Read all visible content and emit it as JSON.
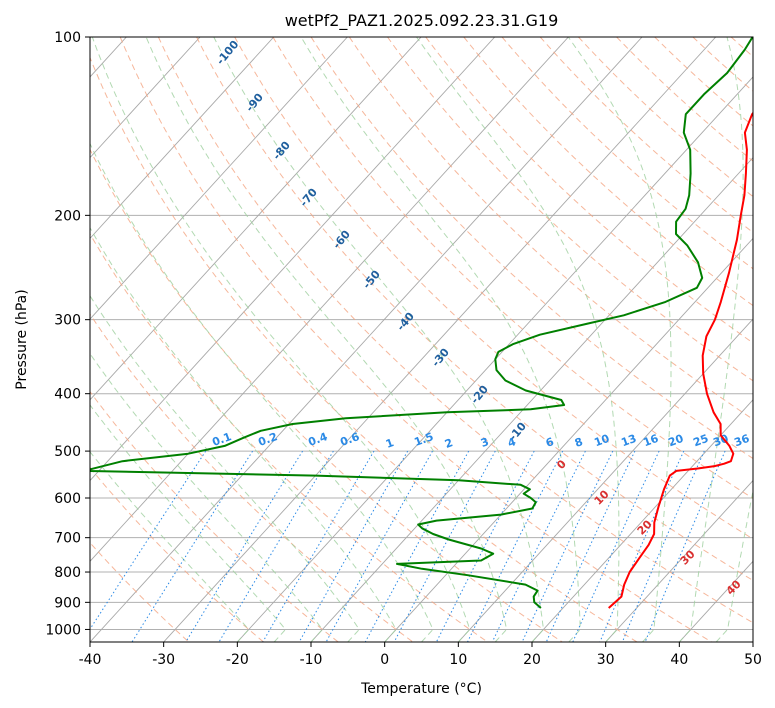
{
  "chart_data": {
    "type": "skew-t",
    "title": "wetPf2_PAZ1.2025.092.23.31.G19",
    "xlabel": "Temperature (°C)",
    "ylabel": "Pressure (hPa)",
    "xlim": [
      -40,
      50
    ],
    "ylim": [
      1050,
      100
    ],
    "y_scale": "log",
    "x_ticks": [
      -40,
      -30,
      -20,
      -10,
      0,
      10,
      20,
      30,
      40,
      50
    ],
    "y_ticks": [
      100,
      200,
      300,
      400,
      500,
      600,
      700,
      800,
      900,
      1000
    ],
    "grid": true,
    "colors": {
      "temperature": "#ff0000",
      "dewpoint": "#008000",
      "isotherm": "#888888",
      "dry_adiabat": "#f4a582",
      "moist_adiabat": "#9fd09f",
      "mixing_ratio": "#2b8ae6",
      "dry_adiabat_labels": "#1f5f9e",
      "moist_adiabat_labels": "#d93030"
    },
    "dry_adiabat_labels": [
      -100,
      -90,
      -80,
      -70,
      -60,
      -50,
      -40,
      -30,
      -20,
      -10
    ],
    "mixing_ratio_labels": [
      "0.1",
      "0.2",
      "0.4",
      "0.6",
      "1",
      "1.5",
      "2",
      "3",
      "4",
      "6",
      "8",
      "10",
      "13",
      "16",
      "20",
      "25",
      "30",
      "36"
    ],
    "moist_adiabat_labels": [
      0,
      10,
      20,
      30,
      40
    ],
    "series": [
      {
        "name": "temperature",
        "points": [
          [
            920,
            26.2
          ],
          [
            880,
            26.5
          ],
          [
            840,
            25.4
          ],
          [
            800,
            24.6
          ],
          [
            760,
            24.2
          ],
          [
            720,
            23.8
          ],
          [
            690,
            23.2
          ],
          [
            660,
            21.8
          ],
          [
            620,
            20.4
          ],
          [
            580,
            19.0
          ],
          [
            550,
            18.1
          ],
          [
            540,
            18.4
          ],
          [
            535,
            21.0
          ],
          [
            530,
            23.0
          ],
          [
            525,
            24.0
          ],
          [
            520,
            24.6
          ],
          [
            505,
            24.0
          ],
          [
            490,
            22.5
          ],
          [
            470,
            20.0
          ],
          [
            450,
            18.6
          ],
          [
            430,
            16.2
          ],
          [
            400,
            13.0
          ],
          [
            370,
            10.0
          ],
          [
            345,
            7.7
          ],
          [
            320,
            5.8
          ],
          [
            300,
            4.9
          ],
          [
            280,
            3.5
          ],
          [
            250,
            1.0
          ],
          [
            220,
            -2.0
          ],
          [
            200,
            -4.5
          ],
          [
            185,
            -6.5
          ],
          [
            170,
            -9.0
          ],
          [
            155,
            -11.8
          ],
          [
            145,
            -14.2
          ],
          [
            135,
            -15.5
          ],
          [
            125,
            -15.8
          ],
          [
            115,
            -16.5
          ],
          [
            105,
            -18.5
          ],
          [
            100,
            -20.0
          ]
        ]
      },
      {
        "name": "dewpoint",
        "points": [
          [
            920,
            17.0
          ],
          [
            900,
            15.4
          ],
          [
            880,
            14.6
          ],
          [
            860,
            14.4
          ],
          [
            840,
            12.0
          ],
          [
            810,
            3.0
          ],
          [
            790,
            -4.0
          ],
          [
            775,
            -8.0
          ],
          [
            765,
            3.0
          ],
          [
            745,
            3.8
          ],
          [
            730,
            1.5
          ],
          [
            705,
            -4.0
          ],
          [
            690,
            -6.8
          ],
          [
            675,
            -9.0
          ],
          [
            665,
            -10.0
          ],
          [
            655,
            -8.0
          ],
          [
            640,
            0.0
          ],
          [
            625,
            3.5
          ],
          [
            610,
            3.2
          ],
          [
            600,
            2.0
          ],
          [
            590,
            0.5
          ],
          [
            580,
            0.8
          ],
          [
            570,
            -1.0
          ],
          [
            560,
            -10.0
          ],
          [
            550,
            -30.0
          ],
          [
            540,
            -62.0
          ],
          [
            520,
            -58.0
          ],
          [
            505,
            -50.0
          ],
          [
            490,
            -46.0
          ],
          [
            475,
            -44.5
          ],
          [
            462,
            -43.0
          ],
          [
            450,
            -39.5
          ],
          [
            440,
            -33.0
          ],
          [
            430,
            -20.0
          ],
          [
            425,
            -9.0
          ],
          [
            418,
            -5.0
          ],
          [
            410,
            -6.0
          ],
          [
            395,
            -12.0
          ],
          [
            380,
            -16.0
          ],
          [
            365,
            -18.5
          ],
          [
            350,
            -20.0
          ],
          [
            340,
            -20.5
          ],
          [
            330,
            -19.5
          ],
          [
            318,
            -17.0
          ],
          [
            305,
            -12.0
          ],
          [
            295,
            -8.0
          ],
          [
            280,
            -4.0
          ],
          [
            265,
            -1.5
          ],
          [
            255,
            -2.0
          ],
          [
            240,
            -4.5
          ],
          [
            225,
            -8.0
          ],
          [
            215,
            -11.0
          ],
          [
            205,
            -12.5
          ],
          [
            195,
            -12.8
          ],
          [
            185,
            -14.0
          ],
          [
            170,
            -16.5
          ],
          [
            155,
            -19.5
          ],
          [
            145,
            -22.5
          ],
          [
            135,
            -24.5
          ],
          [
            125,
            -24.5
          ],
          [
            115,
            -24.0
          ],
          [
            105,
            -24.5
          ],
          [
            100,
            -25.0
          ]
        ]
      }
    ]
  }
}
